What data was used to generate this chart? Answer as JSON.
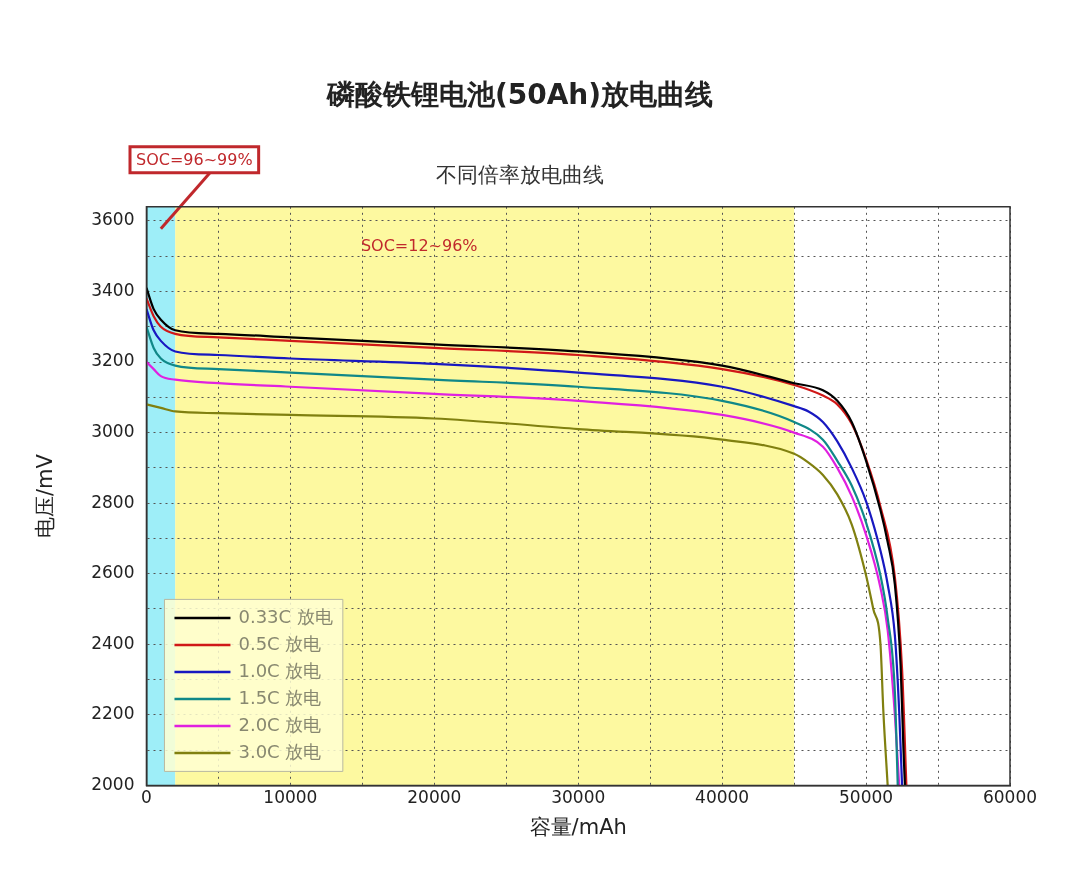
{
  "chart_data": {
    "type": "line",
    "title": "磷酸铁锂电池(50Ah)放电曲线",
    "subtitle": "不同倍率放电曲线",
    "xlabel": "容量/mAh",
    "ylabel": "电压/mV",
    "xlim": [
      0,
      60000
    ],
    "ylim": [
      2000,
      3640
    ],
    "xticks": [
      0,
      {
        "value": 5000,
        "label": null
      },
      10000,
      {
        "value": 15000,
        "label": null
      },
      20000,
      {
        "value": 25000,
        "label": null
      },
      30000,
      {
        "value": 35000,
        "label": null
      },
      40000,
      {
        "value": 45000,
        "label": null
      },
      50000,
      {
        "value": 55000,
        "label": null
      },
      60000
    ],
    "yticks": [
      2000,
      {
        "value": 2100,
        "label": null
      },
      2200,
      {
        "value": 2300,
        "label": null
      },
      2400,
      {
        "value": 2500,
        "label": null
      },
      2600,
      {
        "value": 2700,
        "label": null
      },
      2800,
      {
        "value": 2900,
        "label": null
      },
      3000,
      {
        "value": 3100,
        "label": null
      },
      3200,
      {
        "value": 3300,
        "label": null
      },
      3400,
      {
        "value": 3500,
        "label": null
      },
      3600
    ],
    "grid": true,
    "legend": "bottom left",
    "marker": "none",
    "bands": [
      {
        "axis": "x",
        "from": 0,
        "to": 2000,
        "label": "SOC=96~99%",
        "color": "#9eeef8"
      },
      {
        "axis": "x",
        "from": 2000,
        "to": 45000,
        "label": "SOC=12~96%",
        "color": "#fdf9a0"
      }
    ],
    "series": [
      {
        "name": "0.33C 放电",
        "color": "#000000",
        "x": [
          0,
          500,
          1000,
          2000,
          5000,
          10000,
          20000,
          30000,
          40000,
          45000,
          47000,
          48000,
          49000,
          50000,
          51000,
          51500,
          52000,
          52400,
          52600,
          52700
        ],
        "values": [
          3410,
          3350,
          3320,
          3290,
          3280,
          3270,
          3250,
          3230,
          3190,
          3140,
          3120,
          3090,
          3030,
          2920,
          2780,
          2690,
          2570,
          2340,
          2100,
          2000
        ]
      },
      {
        "name": "0.5C 放电",
        "color": "#d01818",
        "x": [
          0,
          500,
          1000,
          2000,
          5000,
          10000,
          20000,
          30000,
          40000,
          45000,
          47000,
          48000,
          49000,
          50000,
          51000,
          52000,
          52500,
          52800
        ],
        "values": [
          3380,
          3330,
          3300,
          3280,
          3270,
          3260,
          3240,
          3220,
          3180,
          3135,
          3105,
          3080,
          3025,
          2925,
          2790,
          2590,
          2330,
          2000
        ]
      },
      {
        "name": "1.0C 放电",
        "color": "#1818c0",
        "x": [
          0,
          500,
          1000,
          2000,
          5000,
          10000,
          20000,
          30000,
          40000,
          45000,
          46000,
          47000,
          48000,
          49000,
          50000,
          51000,
          51500,
          52000,
          52300,
          52500
        ],
        "values": [
          3350,
          3290,
          3260,
          3230,
          3220,
          3210,
          3195,
          3170,
          3130,
          3075,
          3060,
          3030,
          2975,
          2900,
          2805,
          2665,
          2570,
          2425,
          2210,
          2000
        ]
      },
      {
        "name": "1.5C 放电",
        "color": "#108888",
        "x": [
          0,
          500,
          1000,
          2000,
          5000,
          10000,
          20000,
          30000,
          40000,
          45000,
          47000,
          48000,
          49000,
          50000,
          51000,
          51500,
          52000,
          52200
        ],
        "values": [
          3300,
          3240,
          3210,
          3190,
          3180,
          3170,
          3150,
          3130,
          3090,
          3030,
          2980,
          2920,
          2850,
          2745,
          2595,
          2475,
          2265,
          2000
        ]
      },
      {
        "name": "2.0C 放电",
        "color": "#e020e0",
        "x": [
          0,
          500,
          1000,
          2000,
          5000,
          10000,
          20000,
          30000,
          40000,
          45000,
          47000,
          48000,
          49000,
          50000,
          51000,
          51500,
          52000,
          52300
        ],
        "values": [
          3200,
          3180,
          3160,
          3150,
          3140,
          3130,
          3110,
          3090,
          3050,
          3000,
          2960,
          2900,
          2820,
          2710,
          2560,
          2440,
          2200,
          2000
        ]
      },
      {
        "name": "3.0C 放电",
        "color": "#808010",
        "x": [
          0,
          1000,
          2000,
          5000,
          10000,
          20000,
          30000,
          40000,
          45000,
          46000,
          47000,
          48000,
          49000,
          50000,
          50500,
          51000,
          51200,
          51500
        ],
        "values": [
          3080,
          3070,
          3060,
          3055,
          3050,
          3040,
          3010,
          2980,
          2940,
          2915,
          2880,
          2825,
          2740,
          2595,
          2500,
          2400,
          2210,
          2000
        ]
      }
    ]
  }
}
